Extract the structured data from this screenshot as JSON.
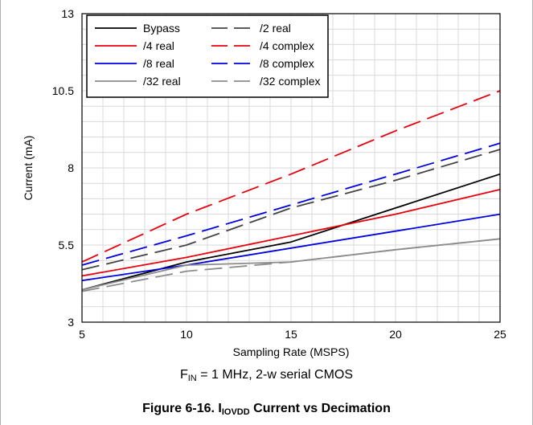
{
  "chart_data": {
    "type": "line",
    "xlabel": "Sampling Rate (MSPS)",
    "ylabel": "Current (mA)",
    "xlim": [
      5,
      25
    ],
    "ylim": [
      3,
      13
    ],
    "xticks": [
      5,
      10,
      15,
      20,
      25
    ],
    "yticks": [
      3,
      5.5,
      8,
      10.5,
      13
    ],
    "ytick_labels": [
      "3",
      "5.5",
      "8",
      "10.5",
      "13"
    ],
    "grid": true,
    "legend_placement": "top-left",
    "x": [
      5,
      10,
      15,
      20,
      25
    ],
    "series": [
      {
        "name": "Bypass",
        "values": [
          4.05,
          4.95,
          5.6,
          6.7,
          7.8
        ],
        "color": "#000000",
        "dash": "solid"
      },
      {
        "name": "/2 real",
        "values": [
          4.7,
          5.5,
          6.7,
          7.6,
          8.6
        ],
        "color": "#444444",
        "dash": "dashed"
      },
      {
        "name": "/4 real",
        "values": [
          4.5,
          5.1,
          5.8,
          6.5,
          7.3
        ],
        "color": "#e8000b",
        "dash": "solid"
      },
      {
        "name": "/4 complex",
        "values": [
          4.95,
          6.5,
          7.8,
          9.2,
          10.5
        ],
        "color": "#e8000b",
        "dash": "dashed"
      },
      {
        "name": "/8 real",
        "values": [
          4.35,
          4.85,
          5.4,
          5.95,
          6.5
        ],
        "color": "#0000e0",
        "dash": "solid"
      },
      {
        "name": "/8 complex",
        "values": [
          4.85,
          5.8,
          6.8,
          7.8,
          8.8
        ],
        "color": "#0000e0",
        "dash": "dashed"
      },
      {
        "name": "/32 real",
        "values": [
          4.05,
          4.85,
          4.95,
          5.35,
          5.7
        ],
        "color": "#8c8c8c",
        "dash": "solid"
      },
      {
        "name": "/32 complex",
        "values": [
          4.0,
          4.65,
          4.95,
          5.35,
          5.7
        ],
        "color": "#8c8c8c",
        "dash": "dashed"
      }
    ]
  },
  "subtitle": {
    "main": "F",
    "sub": "IN",
    "rest": " = 1 MHz, 2-w serial CMOS"
  },
  "caption": {
    "prefix": "Figure 6-16. I",
    "sub": "IOVDD",
    "rest": " Current vs Decimation"
  }
}
